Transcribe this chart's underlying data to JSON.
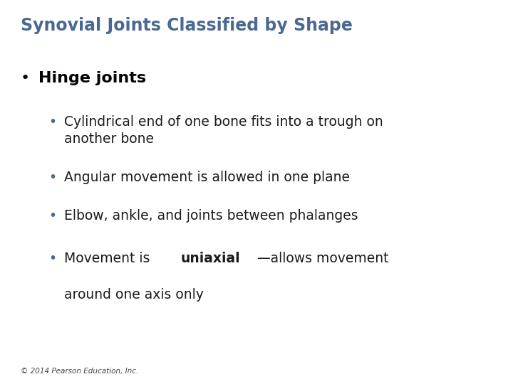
{
  "title": "Synovial Joints Classified by Shape",
  "title_color": "#4a6891",
  "title_fontsize": 17,
  "background_color": "#ffffff",
  "l1_bullet": "•",
  "l1_text": "Hinge joints",
  "l1_fontsize": 16,
  "l1_color": "#000000",
  "sub_fontsize": 13.5,
  "sub_color": "#1a1a1a",
  "bullet_color": "#4a6891",
  "footnote": "© 2014 Pearson Education, Inc.",
  "footnote_fontsize": 7.5,
  "footnote_color": "#444444"
}
